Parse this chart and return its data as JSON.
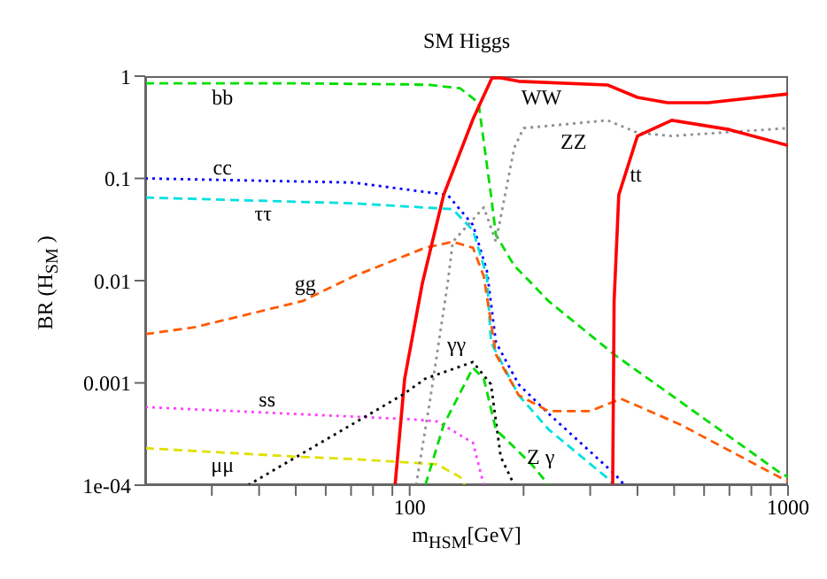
{
  "chart_data": {
    "type": "line",
    "title": "SM Higgs",
    "xlabel": "m$_{H}$$_{SM}$[GeV]",
    "ylabel": "BR (H$_{SM}$ )",
    "log": "xy",
    "grid": false,
    "legend": false,
    "marker": "none",
    "xlim": [
      20,
      1000
    ],
    "ylim": [
      0.0001,
      1
    ],
    "xticks": [
      {
        "value": 30,
        "label": null
      },
      {
        "value": 40,
        "label": null
      },
      {
        "value": 50,
        "label": null
      },
      {
        "value": 60,
        "label": null
      },
      {
        "value": 70,
        "label": null
      },
      {
        "value": 80,
        "label": null
      },
      {
        "value": 90,
        "label": null
      },
      100,
      {
        "value": 200,
        "label": null
      },
      {
        "value": 300,
        "label": null
      },
      {
        "value": 400,
        "label": null
      },
      {
        "value": 500,
        "label": null
      },
      {
        "value": 600,
        "label": null
      },
      {
        "value": 700,
        "label": null
      },
      {
        "value": 800,
        "label": null
      },
      {
        "value": 900,
        "label": null
      },
      1000
    ],
    "yticks": [
      {
        "value": 0.0001,
        "label": "1e-04"
      },
      0.001,
      0.01,
      0.1,
      1
    ],
    "series": [
      {
        "name": "bb",
        "color": "#00dd00",
        "line_style": "dashed",
        "x": [
          20,
          50,
          100,
          113,
          136,
          152,
          164,
          169,
          189,
          210,
          233,
          347,
          948,
          1000
        ],
        "values": [
          0.85,
          0.85,
          0.83,
          0.82,
          0.76,
          0.55,
          0.069,
          0.028,
          0.014,
          0.0094,
          0.0063,
          0.0019,
          0.000134,
          0.00012
        ]
      },
      {
        "name": "cc",
        "color": "#0000ff",
        "line_style": "dotted",
        "x": [
          20,
          71,
          126,
          147,
          160,
          169,
          194,
          233,
          347,
          370
        ],
        "values": [
          0.1,
          0.091,
          0.069,
          0.035,
          0.0125,
          0.0025,
          0.00097,
          0.0005,
          0.00013,
          0.0001
        ]
      },
      {
        "name": "ττ",
        "color": "#00e0e0",
        "line_style": "dashed",
        "x": [
          20,
          71,
          130,
          147,
          160,
          164,
          194,
          233,
          340,
          345
        ],
        "values": [
          0.065,
          0.057,
          0.05,
          0.031,
          0.011,
          0.0025,
          0.00076,
          0.00035,
          0.00011,
          0.0001
        ]
      },
      {
        "name": "gg",
        "color": "#ff5a00",
        "line_style": "dashed",
        "x": [
          20,
          27,
          52,
          71,
          110,
          130,
          147,
          157,
          169,
          194,
          233,
          300,
          362,
          520,
          948,
          1000
        ],
        "values": [
          0.003,
          0.0035,
          0.0063,
          0.011,
          0.021,
          0.024,
          0.021,
          0.011,
          0.0019,
          0.00076,
          0.00053,
          0.00053,
          0.0007,
          0.00039,
          0.00012,
          0.00011
        ]
      },
      {
        "name": "ss",
        "color": "#ff40ff",
        "line_style": "dotted",
        "x": [
          20,
          102,
          118,
          147,
          157
        ],
        "values": [
          0.00058,
          0.00044,
          0.00042,
          0.00026,
          0.0001
        ]
      },
      {
        "name": "μμ",
        "color": "#e0e000",
        "line_style": "dashed",
        "x": [
          20,
          50,
          71,
          118,
          136,
          140
        ],
        "values": [
          0.00023,
          0.00019,
          0.00018,
          0.00016,
          0.00012,
          0.0001
        ]
      },
      {
        "name": "WW",
        "color": "#ff0000",
        "line_style": "solid",
        "x": [
          91.5,
          97,
          108,
          123,
          147,
          165,
          174,
          194,
          333,
          400,
          480,
          616,
          1000
        ],
        "values": [
          0.0001,
          0.0011,
          0.0094,
          0.069,
          0.38,
          0.96,
          0.96,
          0.89,
          0.82,
          0.62,
          0.55,
          0.55,
          0.67
        ]
      },
      {
        "name": "ZZ",
        "color": "#909090",
        "line_style": "dotted",
        "x": [
          104,
          113,
          126,
          130,
          157,
          169,
          189,
          200,
          333,
          400,
          493,
          1000
        ],
        "values": [
          0.0001,
          0.00065,
          0.0094,
          0.024,
          0.052,
          0.024,
          0.2,
          0.31,
          0.37,
          0.28,
          0.26,
          0.31
        ]
      },
      {
        "name": "tt",
        "color": "#ff0000",
        "line_style": "solid",
        "x": [
          344,
          347,
          357,
          400,
          493,
          700,
          1000
        ],
        "values": [
          0.0001,
          0.0063,
          0.069,
          0.26,
          0.37,
          0.3,
          0.21
        ]
      },
      {
        "name": "γγ",
        "color": "#000000",
        "line_style": "dotted",
        "x": [
          37.4,
          95.5,
          110,
          147,
          164,
          174,
          189
        ],
        "values": [
          0.0001,
          0.00076,
          0.0011,
          0.0016,
          0.00097,
          0.00019,
          0.0001
        ]
      },
      {
        "name": "Z γ",
        "color": "#00dd00",
        "line_style": "dashed",
        "x": [
          110,
          123,
          147,
          157,
          169,
          210,
          233
        ],
        "values": [
          0.0001,
          0.00039,
          0.0014,
          0.0011,
          0.00035,
          0.00016,
          0.0001
        ]
      }
    ]
  }
}
